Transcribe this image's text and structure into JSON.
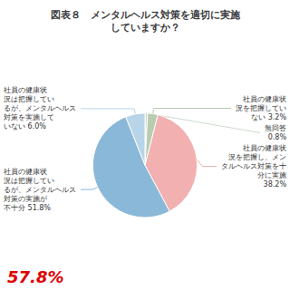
{
  "chart_data": {
    "type": "pie",
    "title": "図表８　メンタルヘルス対策を適切に実施\nしていますか？",
    "categories": [
      "無回答\n0.8%",
      "社員の健康状\n況を把握してい\nない 3.2%",
      "社員の健康状\n況を把握し、メン\nタルヘルス対策を十\n分に実施\n38.2%",
      "社員の健康状\n況は把握してい\nるが、メンタルヘルス\n対策の実施が\n不十分 51.8%",
      "社員の健康状\n況は把握してい\nるが、メンタルヘルス\n対策を実施して\nいない 6.0%"
    ],
    "values": [
      0.8,
      3.2,
      38.2,
      51.8,
      6.0
    ],
    "colors": [
      "#ccdccc",
      "#b8ccb0",
      "#f2b0b0",
      "#8ab8d8",
      "#b8d4e8"
    ],
    "annotations": [
      {
        "text": "57.8%",
        "color": "#dd0000"
      }
    ]
  }
}
